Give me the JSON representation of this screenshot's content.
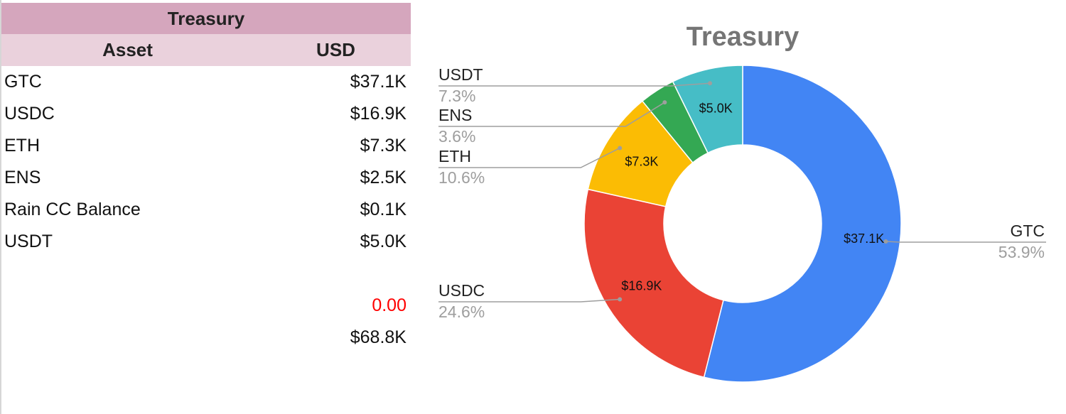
{
  "table": {
    "title": "Treasury",
    "headers": [
      "Asset",
      "USD"
    ],
    "rows": [
      {
        "asset": "GTC",
        "usd": "$37.1K"
      },
      {
        "asset": "USDC",
        "usd": "$16.9K"
      },
      {
        "asset": "ETH",
        "usd": "$7.3K"
      },
      {
        "asset": "ENS",
        "usd": "$2.5K"
      },
      {
        "asset": "Rain CC Balance",
        "usd": "$0.1K"
      },
      {
        "asset": "USDT",
        "usd": "$5.0K"
      }
    ],
    "check_value": "0.00",
    "total": "$68.8K"
  },
  "chart_data": {
    "type": "pie",
    "donut": true,
    "title": "Treasury",
    "legend": "none",
    "slices": [
      {
        "label": "GTC",
        "value": 37.1,
        "value_label": "$37.1K",
        "percent": 53.9,
        "percent_label": "53.9%",
        "color": "#4285f4"
      },
      {
        "label": "USDC",
        "value": 16.9,
        "value_label": "$16.9K",
        "percent": 24.6,
        "percent_label": "24.6%",
        "color": "#ea4335"
      },
      {
        "label": "ETH",
        "value": 7.3,
        "value_label": "$7.3K",
        "percent": 10.6,
        "percent_label": "10.6%",
        "color": "#fbbc04"
      },
      {
        "label": "ENS",
        "value": 2.5,
        "value_label": "",
        "percent": 3.6,
        "percent_label": "3.6%",
        "color": "#34a853"
      },
      {
        "label": "USDT",
        "value": 5.0,
        "value_label": "$5.0K",
        "percent": 7.3,
        "percent_label": "7.3%",
        "color": "#46bdc6"
      }
    ]
  }
}
